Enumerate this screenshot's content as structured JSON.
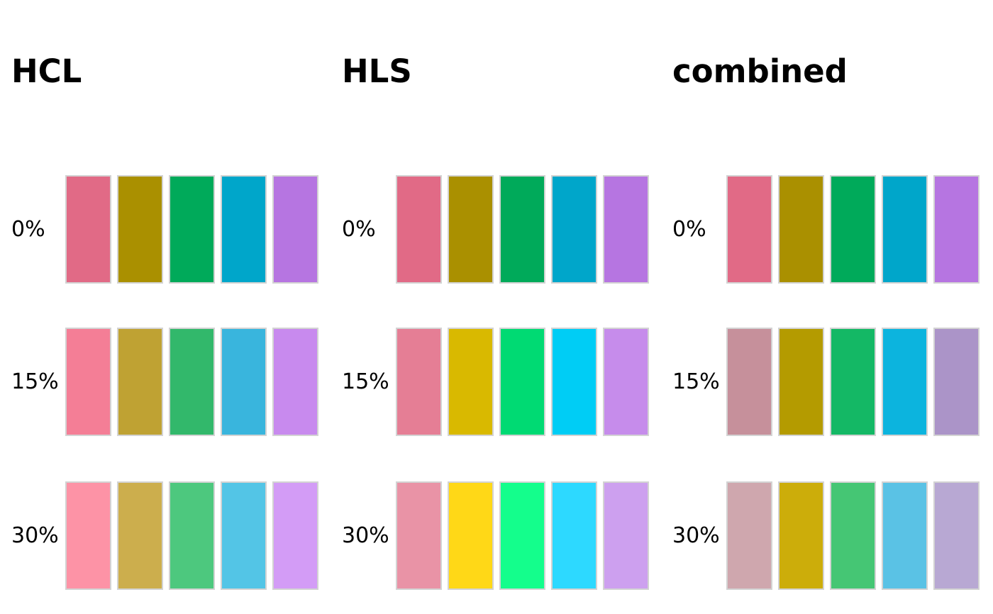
{
  "figure": {
    "background": "#ffffff",
    "swatch_border_color": "#d3d3d3",
    "text_color": "#000000"
  },
  "chart_data": {
    "type": "table",
    "description": "Color palette swatch grid comparing lightening of a 5-color qualitative palette in HCL space, HLS space, and combined space at 0%, 15% and 30% amounts",
    "row_labels": [
      "0%",
      "15%",
      "30%"
    ],
    "n_colors_per_row": 5,
    "legend_position": "none",
    "grid": false,
    "panels": [
      {
        "title": "HCL",
        "rows": [
          {
            "label": "0%",
            "colors": [
              "#E16A86",
              "#AA9000",
              "#00AA5A",
              "#00A6CA",
              "#B675E1"
            ]
          },
          {
            "label": "15%",
            "colors": [
              "#F47E96",
              "#BFA233",
              "#32B86B",
              "#39B5DD",
              "#C88AEE"
            ]
          },
          {
            "label": "30%",
            "colors": [
              "#FD93A6",
              "#CCAE4D",
              "#4DC87E",
              "#53C5E6",
              "#D39CF6"
            ]
          }
        ]
      },
      {
        "title": "HLS",
        "rows": [
          {
            "label": "0%",
            "colors": [
              "#E16A86",
              "#AA9000",
              "#00AA5A",
              "#00A6CA",
              "#B675E1"
            ]
          },
          {
            "label": "15%",
            "colors": [
              "#E57E95",
              "#D9B900",
              "#00DA73",
              "#00CDF5",
              "#C68CEB"
            ]
          },
          {
            "label": "30%",
            "colors": [
              "#E993A6",
              "#FFD817",
              "#14FE8C",
              "#2DD9FF",
              "#CDA0EF"
            ]
          }
        ]
      },
      {
        "title": "combined",
        "rows": [
          {
            "label": "0%",
            "colors": [
              "#E16A86",
              "#AA9000",
              "#00AA5A",
              "#00A6CA",
              "#B675E1"
            ]
          },
          {
            "label": "15%",
            "colors": [
              "#C6909B",
              "#B49B00",
              "#14B865",
              "#0CB4DE",
              "#AB94C8"
            ]
          },
          {
            "label": "30%",
            "colors": [
              "#CFA7AE",
              "#CCAD0A",
              "#45C674",
              "#5AC2E5",
              "#B8A8D3"
            ]
          }
        ]
      }
    ]
  }
}
